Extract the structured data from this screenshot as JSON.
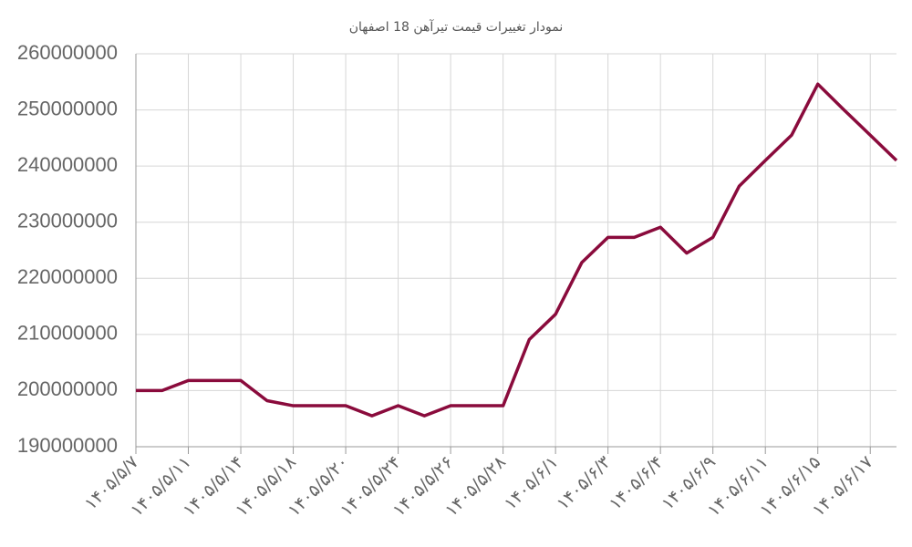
{
  "chart_data": {
    "type": "line",
    "title": "نمودار تغییرات قیمت تیرآهن 18 اصفهان",
    "categories": [
      "۱۴۰۵/۵/۷",
      null,
      "۱۴۰۵/۵/۱۱",
      null,
      "۱۴۰۵/۵/۱۴",
      null,
      "۱۴۰۵/۵/۱۸",
      null,
      "۱۴۰۵/۵/۲۰",
      null,
      "۱۴۰۵/۵/۲۴",
      null,
      "۱۴۰۵/۵/۲۶",
      null,
      "۱۴۰۵/۵/۲۸",
      null,
      "۱۴۰۵/۶/۱",
      null,
      "۱۴۰۵/۶/۳",
      null,
      "۱۴۰۵/۶/۴",
      null,
      "۱۴۰۵/۶/۹",
      null,
      "۱۴۰۵/۶/۱۱",
      null,
      "۱۴۰۵/۶/۱۵",
      null,
      "۱۴۰۵/۶/۱۷",
      null
    ],
    "series": [
      {
        "color": "#8a0b3c",
        "values": [
          200000000,
          200000000,
          201800000,
          201800000,
          201800000,
          198200000,
          197300000,
          197300000,
          197300000,
          195500000,
          197300000,
          195500000,
          197300000,
          197300000,
          197300000,
          209100000,
          213600000,
          222800000,
          227300000,
          227300000,
          229100000,
          224500000,
          227300000,
          236400000,
          241000000,
          245500000,
          254600000,
          250000000,
          245500000,
          241000000
        ]
      }
    ],
    "ylim": [
      190000000,
      260000000
    ],
    "yticks": [
      190000000,
      200000000,
      210000000,
      220000000,
      230000000,
      240000000,
      250000000,
      260000000
    ],
    "grid": true
  }
}
